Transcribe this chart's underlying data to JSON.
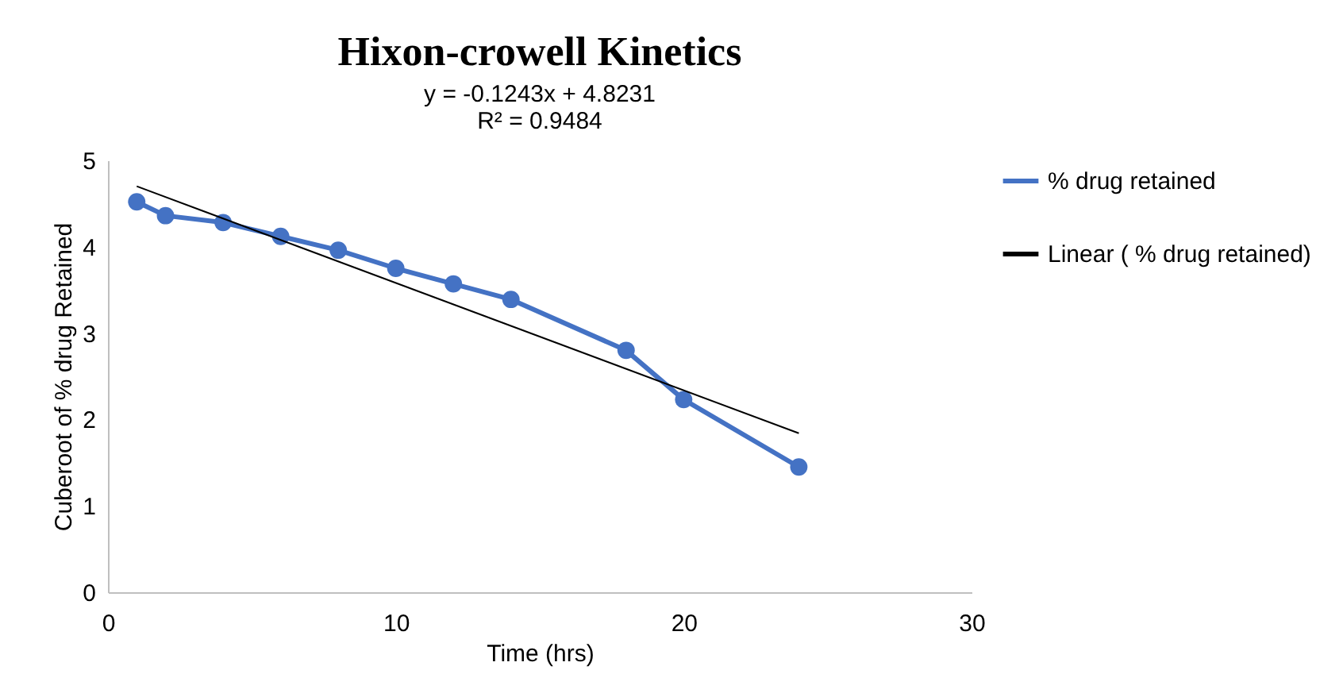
{
  "chart_data": {
    "type": "line",
    "title": "Hixon-crowell Kinetics",
    "xlabel": "Time (hrs)",
    "ylabel": "Cuberoot of % drug Retained",
    "annotations": [
      "y = -0.1243x + 4.8231",
      "R² = 0.9484"
    ],
    "x": [
      1,
      2,
      4,
      6,
      8,
      10,
      12,
      14,
      18,
      20,
      24
    ],
    "series": [
      {
        "name": "% drug retained",
        "color": "#4472c4",
        "marker": "circle",
        "values": [
          4.52,
          4.36,
          4.28,
          4.12,
          3.96,
          3.75,
          3.57,
          3.39,
          2.8,
          2.23,
          1.45
        ]
      },
      {
        "name": "Linear ( % drug retained)",
        "color": "#000000",
        "type": "line",
        "marker": "none",
        "x": [
          1,
          24
        ],
        "values": [
          4.7,
          1.84
        ]
      }
    ],
    "xlim": [
      0,
      30
    ],
    "xticks": [
      0,
      10,
      20,
      30
    ],
    "ylim": [
      0,
      5
    ],
    "yticks": [
      0,
      1,
      2,
      3,
      4,
      5
    ],
    "grid": false,
    "legend": "right"
  }
}
